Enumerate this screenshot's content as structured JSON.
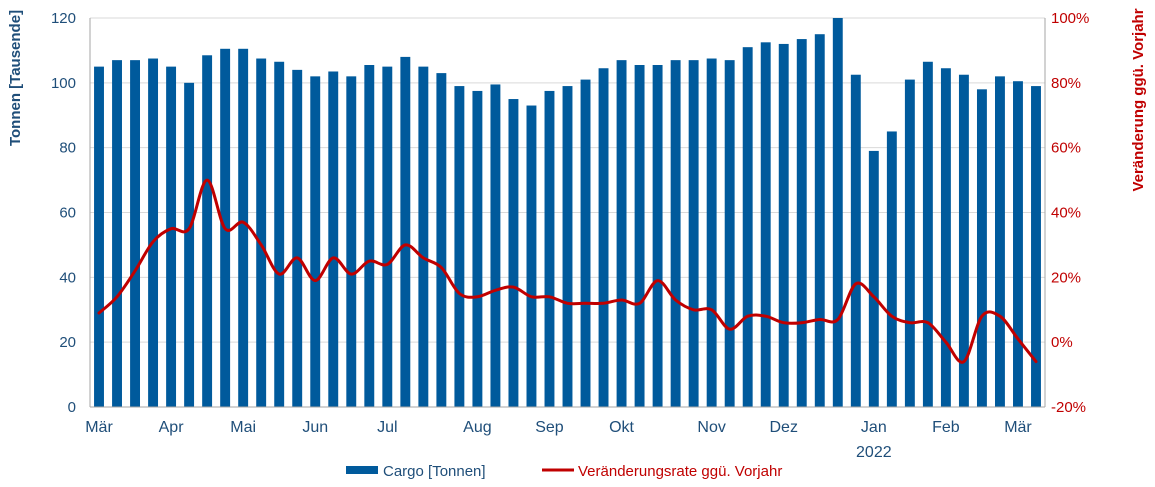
{
  "colors": {
    "bar": "#005A9C",
    "line": "#C00000",
    "grid": "#D9D9D9",
    "left_axis": "#1F4E79",
    "right_axis": "#C00000"
  },
  "chart_data": {
    "type": "bar+line",
    "title": "",
    "ylabel_left": "Tonnen [Tausende]",
    "ylabel_right": "Veränderung ggü. Vorjahr",
    "ylim_left": [
      0,
      120
    ],
    "ylim_right": [
      -20,
      100
    ],
    "yticks_left": [
      0,
      20,
      40,
      60,
      80,
      100,
      120
    ],
    "yticks_right": [
      "-20%",
      "0%",
      "20%",
      "40%",
      "60%",
      "80%",
      "100%"
    ],
    "yticks_right_values": [
      -20,
      0,
      20,
      40,
      60,
      80,
      100
    ],
    "x_month_labels": [
      {
        "label": "Mär",
        "at": 0
      },
      {
        "label": "Apr",
        "at": 4
      },
      {
        "label": "Mai",
        "at": 8
      },
      {
        "label": "Jun",
        "at": 12
      },
      {
        "label": "Jul",
        "at": 16
      },
      {
        "label": "Aug",
        "at": 21
      },
      {
        "label": "Sep",
        "at": 25
      },
      {
        "label": "Okt",
        "at": 29
      },
      {
        "label": "Nov",
        "at": 34
      },
      {
        "label": "Dez",
        "at": 38
      },
      {
        "label": "Jan",
        "at": 43
      },
      {
        "label": "Feb",
        "at": 47
      },
      {
        "label": "Mär",
        "at": 51
      }
    ],
    "x_year_label": {
      "label": "2022",
      "at": 43
    },
    "series": [
      {
        "name": "Cargo [Tonnen]",
        "type": "bar",
        "axis": "left",
        "values": [
          105,
          107,
          107,
          107.5,
          105,
          100,
          108.5,
          110.5,
          110.5,
          107.5,
          106.5,
          104,
          102,
          103.5,
          102,
          105.5,
          105,
          108,
          105,
          103,
          99,
          97.5,
          99.5,
          95,
          93,
          97.5,
          99,
          101,
          104.5,
          107,
          105.5,
          105.5,
          107,
          107,
          107.5,
          107,
          111,
          112.5,
          112,
          113.5,
          115,
          120,
          102.5,
          79,
          85,
          101,
          106.5,
          104.5,
          102.5,
          98,
          102,
          100.5,
          99
        ]
      },
      {
        "name": "Veränderungsrate ggü. Vorjahr",
        "type": "line",
        "axis": "right",
        "values": [
          9,
          14,
          22,
          31,
          35,
          35,
          50,
          35,
          37,
          30,
          21,
          26,
          19,
          26,
          21,
          25,
          24,
          30,
          26,
          23,
          15,
          14,
          16,
          17,
          14,
          14,
          12,
          12,
          12,
          13,
          12,
          19,
          13,
          10,
          10,
          4,
          8,
          8,
          6,
          6,
          7,
          7,
          18,
          14,
          8,
          6,
          6,
          0,
          -6,
          8,
          8,
          1,
          -6
        ]
      }
    ],
    "legend": {
      "position": "bottom-center"
    }
  }
}
